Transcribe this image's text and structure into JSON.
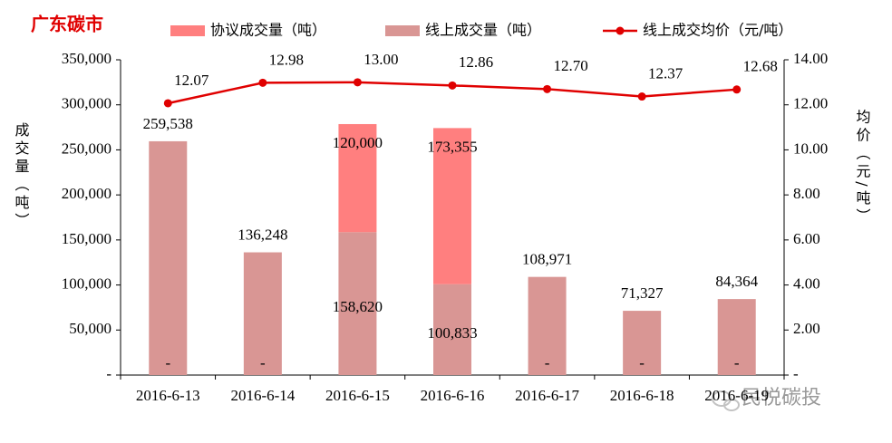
{
  "chart_data": {
    "type": "bar",
    "title": "广东碳市",
    "ylabel": "成交量（吨）",
    "y2label": "均价（元/吨）",
    "watermark": "民悦碳投",
    "stacked": true,
    "categories": [
      "2016-6-13",
      "2016-6-14",
      "2016-6-15",
      "2016-6-16",
      "2016-6-17",
      "2016-6-18",
      "2016-6-19"
    ],
    "series": [
      {
        "name": "协议成交量（吨）",
        "color": "#ff7f7f",
        "values": [
          0,
          0,
          120000,
          173355,
          0,
          0,
          0
        ],
        "value_labels": [
          "-",
          "-",
          "120,000",
          "173,355",
          "-",
          "-",
          "-"
        ]
      },
      {
        "name": "线上成交量（吨）",
        "color": "#d99694",
        "values": [
          259538,
          136248,
          158620,
          100833,
          108971,
          71327,
          84364
        ],
        "value_labels": [
          "259,538",
          "136,248",
          "158,620",
          "100,833",
          "108,971",
          "71,327",
          "84,364"
        ]
      },
      {
        "name": "线上成交均价（元/吨）",
        "type": "line",
        "axis": "y2",
        "color": "#e00000",
        "values": [
          12.07,
          12.98,
          13.0,
          12.86,
          12.7,
          12.37,
          12.68
        ],
        "value_labels": [
          "12.07",
          "12.98",
          "13.00",
          "12.86",
          "12.70",
          "12.37",
          "12.68"
        ]
      }
    ],
    "ylim": [
      0,
      350000
    ],
    "yticks": [
      {
        "value": 0,
        "label": "-"
      },
      {
        "value": 50000,
        "label": "50,000"
      },
      {
        "value": 100000,
        "label": "100,000"
      },
      {
        "value": 150000,
        "label": "150,000"
      },
      {
        "value": 200000,
        "label": "200,000"
      },
      {
        "value": 250000,
        "label": "250,000"
      },
      {
        "value": 300000,
        "label": "300,000"
      },
      {
        "value": 350000,
        "label": "350,000"
      }
    ],
    "y2lim": [
      0,
      14
    ],
    "y2ticks": [
      {
        "value": 0,
        "label": "-"
      },
      {
        "value": 2,
        "label": "2.00"
      },
      {
        "value": 4,
        "label": "4.00"
      },
      {
        "value": 6,
        "label": "6.00"
      },
      {
        "value": 8,
        "label": "8.00"
      },
      {
        "value": 10,
        "label": "10.00"
      },
      {
        "value": 12,
        "label": "12.00"
      },
      {
        "value": 14,
        "label": "14.00"
      }
    ]
  }
}
